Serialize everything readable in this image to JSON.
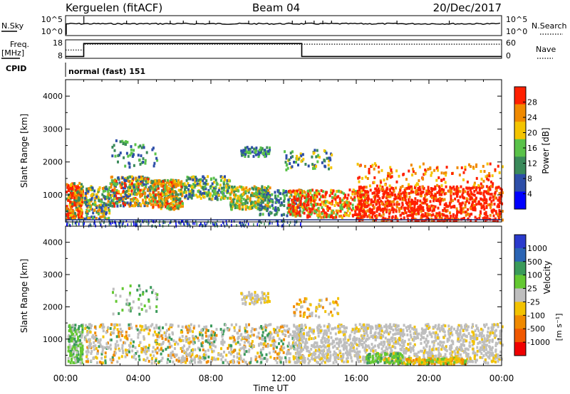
{
  "header": {
    "radar": "Kerguelen (fitACF)",
    "beam": "Beam 04",
    "date": "20/Dec/2017"
  },
  "left_labels": {
    "nsky": "N.Sky",
    "freq": "Freq.",
    "freq_unit": "[MHz]",
    "cpid": "CPID"
  },
  "right_labels": {
    "nsearch": "N.Search",
    "nave": "Nave"
  },
  "nsky_ticks_left": [
    "10^5",
    "10^0"
  ],
  "nsky_ticks_right": [
    "10^5",
    "10^0"
  ],
  "freq_ticks": [
    "18",
    "8"
  ],
  "nave_ticks": [
    "60",
    "0"
  ],
  "cpid_text": "normal (fast) 151",
  "colors": {
    "power": [
      "#0000ff",
      "#2d4ea8",
      "#3a8a5a",
      "#5ac24a",
      "#f4c400",
      "#f08a00",
      "#ff2000"
    ],
    "velocity": [
      "#2a3acc",
      "#2a64b4",
      "#3a9a5a",
      "#64c832",
      "#bebebe",
      "#f2c200",
      "#f08a00",
      "#f05800",
      "#f00000"
    ]
  },
  "chart_data": [
    {
      "type": "heatmap",
      "panel": "power",
      "ylabel": "Slant Range [km]",
      "xlabel": "",
      "x_ticks": [
        "00:00",
        "04:00",
        "08:00",
        "12:00",
        "16:00",
        "20:00",
        "00:00"
      ],
      "y_ticks": [
        "1000",
        "2000",
        "3000",
        "4000"
      ],
      "ylim": [
        180,
        4500
      ],
      "xlim_hours": [
        0,
        24
      ],
      "colorbar": {
        "label": "Power [dB]",
        "ticks": [
          "4",
          "8",
          "12",
          "16",
          "20",
          "24",
          "28"
        ],
        "range": [
          0,
          30
        ]
      }
    },
    {
      "type": "heatmap",
      "panel": "velocity",
      "ylabel": "Slant Range [km]",
      "xlabel": "Time UT",
      "x_ticks": [
        "00:00",
        "04:00",
        "08:00",
        "12:00",
        "16:00",
        "20:00",
        "00:00"
      ],
      "y_ticks": [
        "1000",
        "2000",
        "3000",
        "4000"
      ],
      "ylim": [
        180,
        4500
      ],
      "xlim_hours": [
        0,
        24
      ],
      "colorbar": {
        "label": "Velocity",
        "label_unit": "[m s⁻¹]",
        "ticks": [
          "1000",
          "500",
          "100",
          "25",
          "-25",
          "-100",
          "-500",
          "-1000"
        ]
      }
    },
    {
      "type": "line",
      "panel": "frequency",
      "series": [
        {
          "values_x_hours": [
            0,
            1,
            1,
            13,
            13,
            24
          ],
          "values": [
            9,
            9,
            16,
            16,
            9,
            9
          ]
        }
      ],
      "ylim": [
        8,
        18
      ]
    },
    {
      "type": "line",
      "panel": "nave",
      "series": [
        {
          "values_x_hours": [
            0,
            1,
            1,
            13,
            13,
            24
          ],
          "values": [
            27,
            27,
            46,
            46,
            46,
            46
          ]
        }
      ],
      "ylim": [
        0,
        60
      ]
    }
  ]
}
